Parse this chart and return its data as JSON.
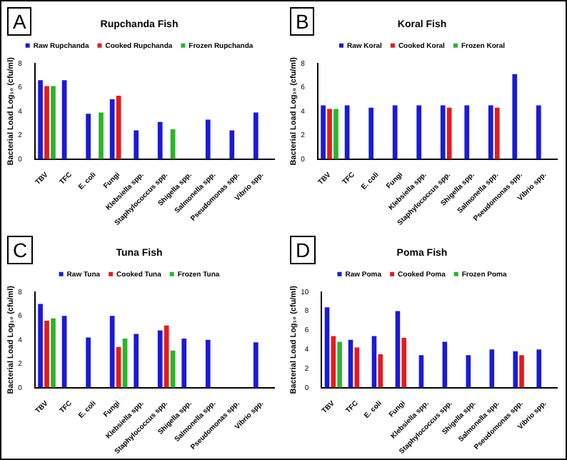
{
  "chart_data": [
    {
      "type": "bar",
      "title": "Rupchanda Fish",
      "annotations": [
        "A"
      ],
      "ylabel": "Bacterial Load Log₁₀ (cfu/ml)",
      "categories": [
        "TBV",
        "TFC",
        "E. coli",
        "Fungi",
        "Klebsiella spp.",
        "Staphylococcus spp.",
        "Shigella spp.",
        "Salmonella spp.",
        "Pseudomonas spp.",
        "Vibrio spp."
      ],
      "ylim": [
        0,
        8
      ],
      "yticks": [
        0,
        2,
        4,
        6,
        8
      ],
      "legend": "top",
      "grid": false,
      "series": [
        {
          "name": "Raw Rupchanda",
          "color": "#1a1adb",
          "values": [
            6.6,
            6.6,
            3.8,
            5.0,
            2.4,
            3.1,
            null,
            3.3,
            2.4,
            3.9
          ]
        },
        {
          "name": "Cooked Rupchanda",
          "color": "#e8191c",
          "values": [
            6.1,
            null,
            null,
            5.3,
            null,
            null,
            null,
            null,
            null,
            null
          ]
        },
        {
          "name": "Frozen Rupchanda",
          "color": "#2ab52a",
          "values": [
            6.1,
            null,
            3.9,
            null,
            null,
            2.5,
            null,
            null,
            null,
            null
          ]
        }
      ]
    },
    {
      "type": "bar",
      "title": "Koral Fish",
      "annotations": [
        "B"
      ],
      "ylabel": "Bacterial Load Log₁₀ (cfu/ml)",
      "categories": [
        "TBV",
        "TFC",
        "E. coli",
        "Fungi",
        "Klebsiella spp.",
        "Staphylococcus spp.",
        "Shigella spp.",
        "Salmonella spp.",
        "Pseudomonas spp.",
        "Vibrio spp."
      ],
      "ylim": [
        0,
        8
      ],
      "yticks": [
        0,
        2,
        4,
        6,
        8
      ],
      "legend": "top",
      "grid": false,
      "series": [
        {
          "name": "Raw Koral",
          "color": "#1a1adb",
          "values": [
            4.5,
            4.5,
            4.3,
            4.5,
            4.5,
            4.5,
            4.5,
            4.5,
            7.1,
            4.5
          ]
        },
        {
          "name": "Cooked Koral",
          "color": "#e8191c",
          "values": [
            4.2,
            null,
            null,
            null,
            null,
            4.3,
            null,
            4.3,
            null,
            null
          ]
        },
        {
          "name": "Frozen Koral",
          "color": "#2ab52a",
          "values": [
            4.2,
            null,
            null,
            null,
            null,
            null,
            null,
            null,
            null,
            null
          ]
        }
      ]
    },
    {
      "type": "bar",
      "title": "Tuna Fish",
      "annotations": [
        "C"
      ],
      "ylabel": "Bacterial Load Log₁₀ (cfu/ml)",
      "categories": [
        "TBV",
        "TFC",
        "E. coli",
        "Fungi",
        "Klebsiella spp.",
        "Staphylococcus spp.",
        "Shigella spp.",
        "Salmonella spp.",
        "Pseudomonas spp.",
        "Vibrio spp."
      ],
      "ylim": [
        0,
        8
      ],
      "yticks": [
        0,
        2,
        4,
        6,
        8
      ],
      "legend": "top",
      "grid": false,
      "series": [
        {
          "name": "Raw Tuna",
          "color": "#1a1adb",
          "values": [
            7.0,
            6.0,
            4.2,
            6.0,
            4.5,
            4.8,
            4.1,
            4.0,
            null,
            3.8
          ]
        },
        {
          "name": "Cooked Tuna",
          "color": "#e8191c",
          "values": [
            5.6,
            null,
            null,
            3.4,
            null,
            5.2,
            null,
            null,
            null,
            null
          ]
        },
        {
          "name": "Frozen Tuna",
          "color": "#2ab52a",
          "values": [
            5.8,
            null,
            null,
            4.1,
            null,
            3.1,
            null,
            null,
            null,
            null
          ]
        }
      ]
    },
    {
      "type": "bar",
      "title": "Poma Fish",
      "annotations": [
        "D"
      ],
      "ylabel": "Bacterial Load Log₁₀ (cfu/ml)",
      "categories": [
        "TBV",
        "TFC",
        "E. coli",
        "Fungi",
        "Klebsiella spp.",
        "Staphylococcus spp.",
        "Shigella spp.",
        "Salmonella spp.",
        "Pseudomonas spp.",
        "Vibrio spp."
      ],
      "ylim": [
        0,
        10
      ],
      "yticks": [
        0,
        2,
        4,
        6,
        8,
        10
      ],
      "legend": "top",
      "grid": false,
      "series": [
        {
          "name": "Raw Poma",
          "color": "#1a1adb",
          "values": [
            8.4,
            5.0,
            5.4,
            8.0,
            3.4,
            4.8,
            3.4,
            4.0,
            3.8,
            4.0
          ]
        },
        {
          "name": "Cooked Poma",
          "color": "#e8191c",
          "values": [
            5.4,
            4.2,
            3.5,
            5.2,
            null,
            null,
            null,
            null,
            3.4,
            null
          ]
        },
        {
          "name": "Frozen Poma",
          "color": "#2ab52a",
          "values": [
            4.8,
            null,
            null,
            null,
            null,
            null,
            null,
            null,
            null,
            null
          ]
        }
      ]
    }
  ]
}
